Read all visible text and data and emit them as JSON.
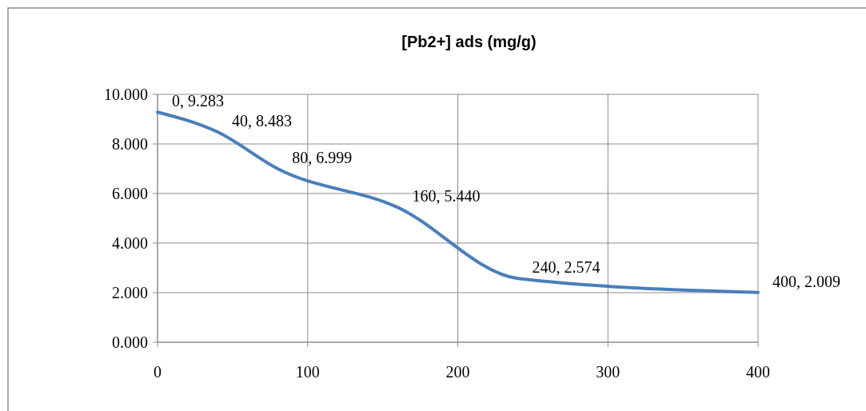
{
  "chart_data": {
    "type": "line",
    "title": "[Pb2+] ads (mg/g)",
    "x": [
      0,
      40,
      80,
      160,
      240,
      400
    ],
    "series": [
      {
        "color": "#4a7ebb",
        "values": [
          9.283,
          8.483,
          6.999,
          5.44,
          2.574,
          2.009
        ],
        "value_labels": [
          "0, 9.283",
          "40, 8.483",
          "80, 6.999",
          "160, 5.440",
          "240, 2.574",
          "400, 2.009"
        ]
      }
    ],
    "xlim": [
      0,
      400
    ],
    "xticks": [
      0,
      100,
      200,
      300,
      400
    ],
    "ylim": [
      0,
      10
    ],
    "yticks": [
      {
        "value": 0,
        "label": "0.000"
      },
      {
        "value": 2,
        "label": "2.000"
      },
      {
        "value": 4,
        "label": "4.000"
      },
      {
        "value": 6,
        "label": "6.000"
      },
      {
        "value": 8,
        "label": "8.000"
      },
      {
        "value": 10,
        "label": "10.000"
      }
    ],
    "grid": true,
    "marker": "none",
    "line_style": "solid"
  }
}
